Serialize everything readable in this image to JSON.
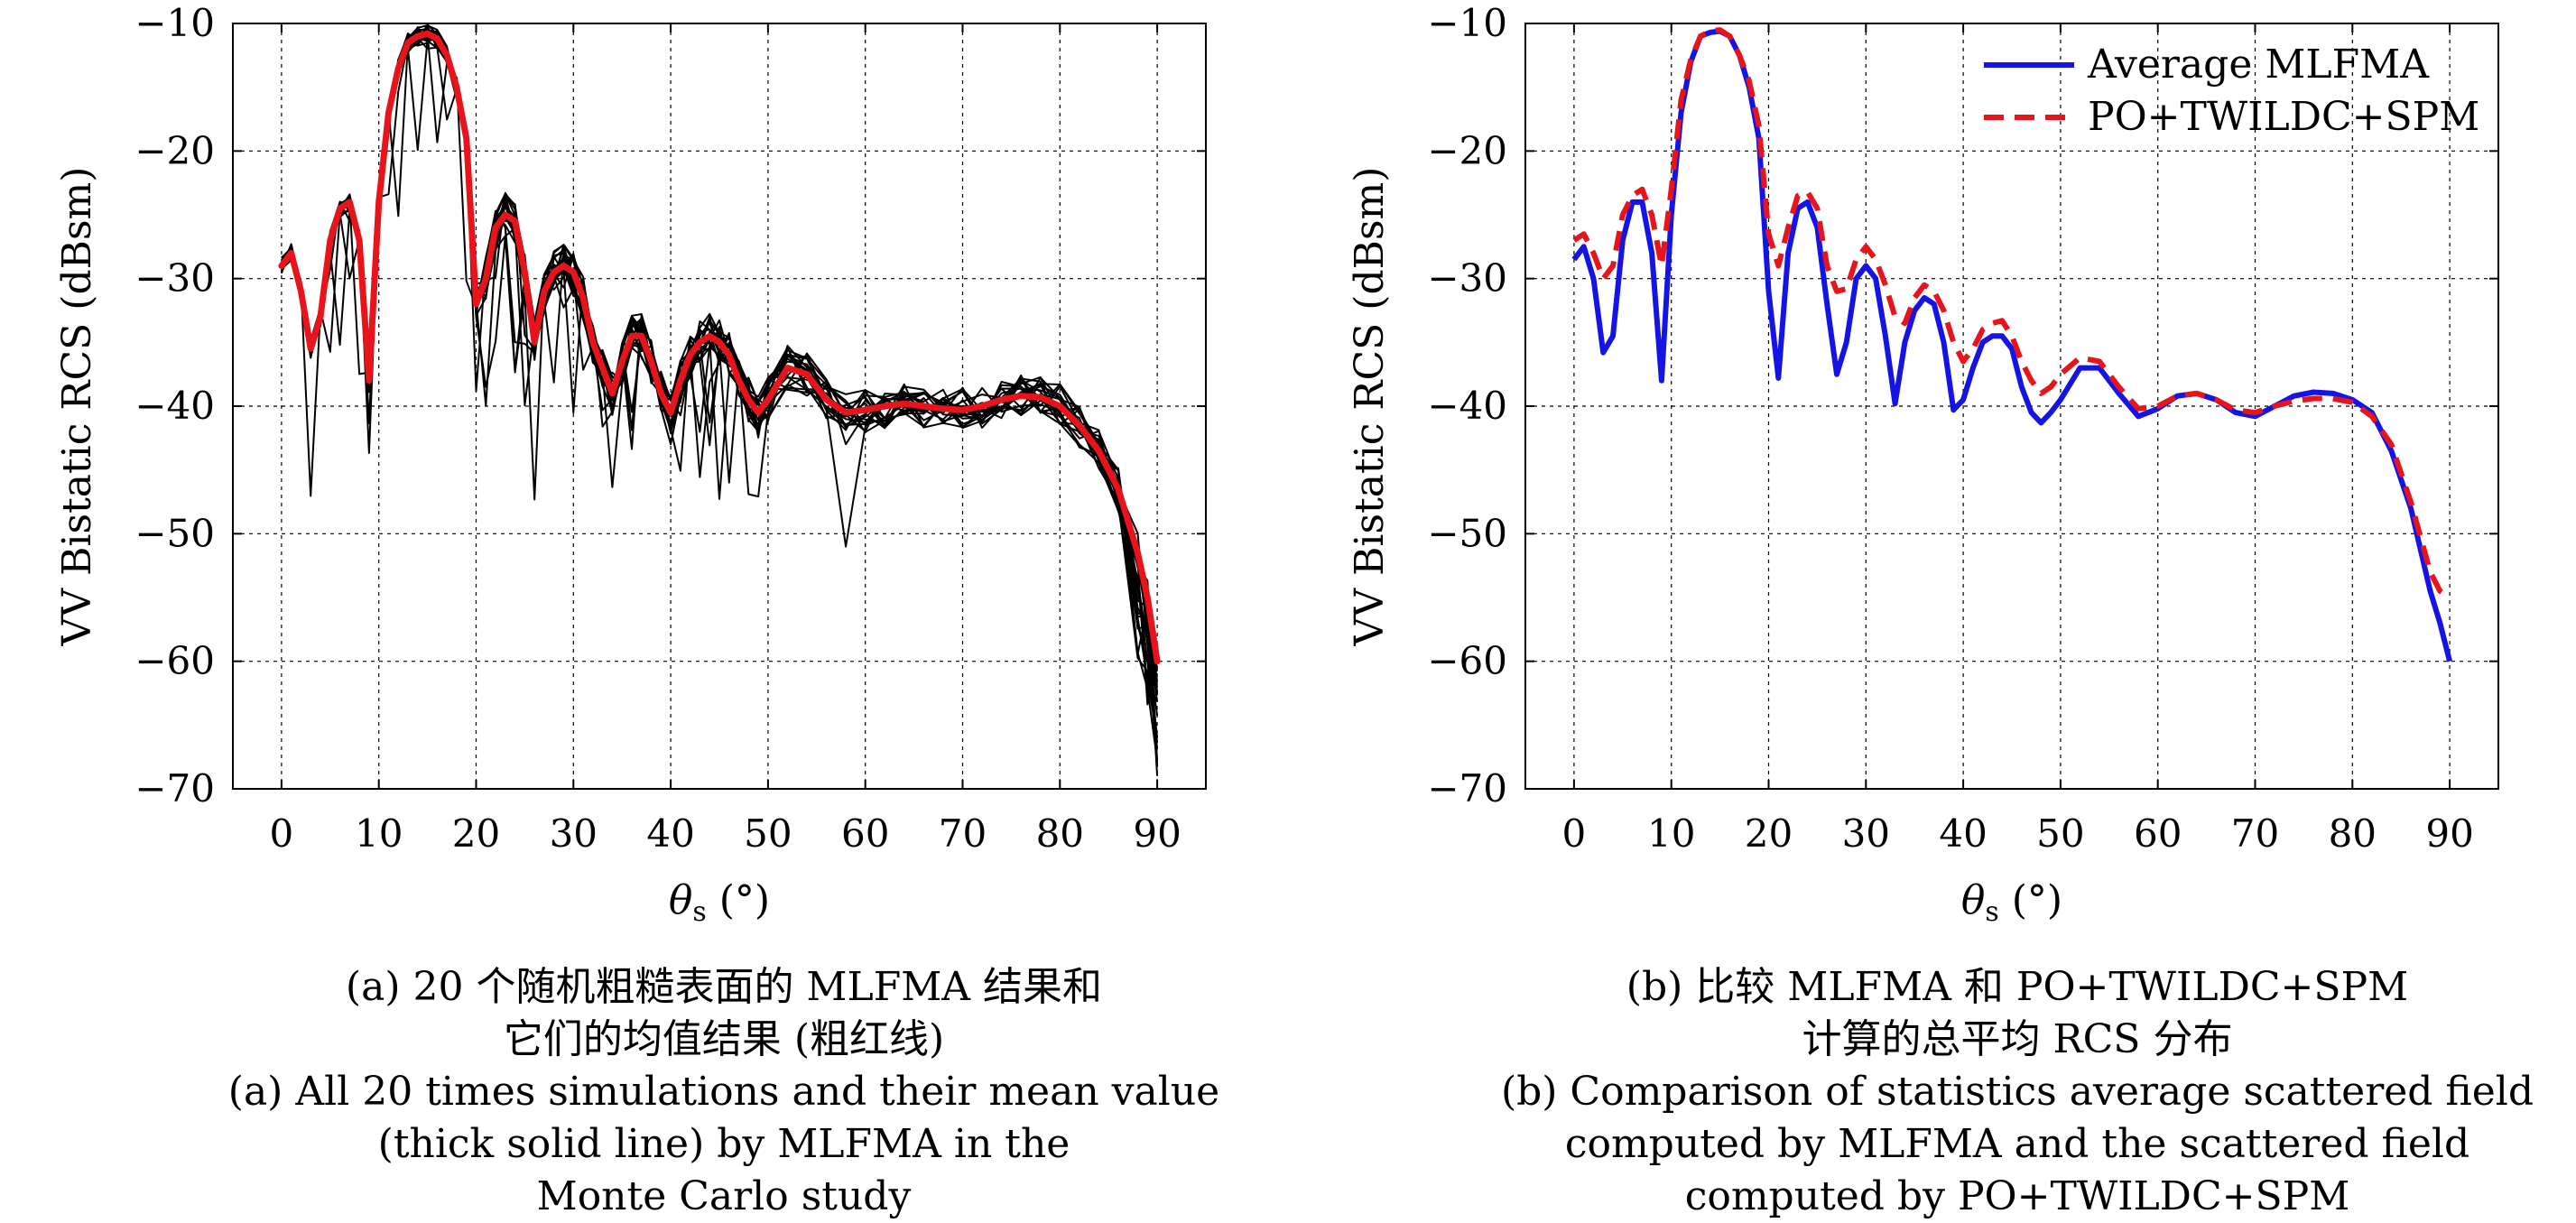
{
  "chart_data": [
    {
      "type": "line",
      "panel": "a",
      "xlabel_symbol": "θ",
      "xlabel_sub": "s",
      "xlabel_unit": "(°)",
      "ylabel": "VV Bistatic RCS (dBsm)",
      "xlim": [
        -5,
        95
      ],
      "ylim": [
        -70,
        -10
      ],
      "xticks": [
        0,
        10,
        20,
        30,
        40,
        50,
        60,
        70,
        80,
        90
      ],
      "yticks": [
        -10,
        -20,
        -30,
        -40,
        -50,
        -60,
        -70
      ],
      "tick_labels_y": [
        "−10",
        "−20",
        "−30",
        "−40",
        "−50",
        "−60",
        "−70"
      ],
      "grid": true,
      "mean_series": {
        "color": "#e8141c",
        "x": [
          0,
          1,
          2,
          3,
          4,
          5,
          6,
          7,
          8,
          9,
          10,
          11,
          12,
          13,
          14,
          15,
          16,
          17,
          18,
          19,
          20,
          21,
          22,
          23,
          24,
          25,
          26,
          27,
          28,
          29,
          30,
          31,
          32,
          33,
          34,
          35,
          36,
          37,
          38,
          39,
          40,
          41,
          42,
          43,
          44,
          45,
          46,
          47,
          48,
          49,
          50,
          52,
          54,
          56,
          58,
          60,
          62,
          64,
          66,
          68,
          70,
          72,
          74,
          76,
          78,
          80,
          82,
          84,
          86,
          88,
          89,
          90
        ],
        "y": [
          -29,
          -28,
          -31,
          -35.5,
          -33,
          -27,
          -24.5,
          -24,
          -27,
          -38,
          -24,
          -17,
          -13.5,
          -11.5,
          -11,
          -10.8,
          -11.2,
          -12.5,
          -15,
          -19,
          -32,
          -30,
          -26,
          -25,
          -25.5,
          -29.5,
          -35,
          -31,
          -29.5,
          -29,
          -29.5,
          -31.5,
          -35,
          -37,
          -39,
          -36.5,
          -34.5,
          -34.5,
          -36.5,
          -39,
          -40.5,
          -38,
          -36,
          -35,
          -34.5,
          -35,
          -36,
          -38,
          -39.5,
          -40.5,
          -39.5,
          -37,
          -37.5,
          -39.5,
          -40.5,
          -40.3,
          -40,
          -39.8,
          -40,
          -40.2,
          -40.3,
          -40,
          -39.5,
          -39.2,
          -39.3,
          -40,
          -41.5,
          -43.5,
          -46.5,
          -51.5,
          -55,
          -60
        ]
      },
      "sample_series_count": 20,
      "sample_color": "#000000"
    },
    {
      "type": "line",
      "panel": "b",
      "xlabel_symbol": "θ",
      "xlabel_sub": "s",
      "xlabel_unit": "(°)",
      "ylabel": "VV Bistatic RCS (dBsm)",
      "xlim": [
        -5,
        95
      ],
      "ylim": [
        -70,
        -10
      ],
      "xticks": [
        0,
        10,
        20,
        30,
        40,
        50,
        60,
        70,
        80,
        90
      ],
      "yticks": [
        -10,
        -20,
        -30,
        -40,
        -50,
        -60,
        -70
      ],
      "tick_labels_y": [
        "−10",
        "−20",
        "−30",
        "−40",
        "−50",
        "−60",
        "−70"
      ],
      "grid": true,
      "legend_position": "top-right",
      "series": [
        {
          "name": "Average MLFMA",
          "color": "#1414e6",
          "dash": "solid",
          "x": [
            0,
            1,
            2,
            3,
            4,
            5,
            6,
            7,
            8,
            9,
            10,
            11,
            12,
            13,
            14,
            15,
            16,
            17,
            18,
            19,
            20,
            21,
            22,
            23,
            24,
            25,
            26,
            27,
            28,
            29,
            30,
            31,
            32,
            33,
            34,
            35,
            36,
            37,
            38,
            39,
            40,
            41,
            42,
            43,
            44,
            45,
            46,
            47,
            48,
            49,
            50,
            52,
            54,
            56,
            58,
            60,
            62,
            64,
            66,
            68,
            70,
            72,
            74,
            76,
            78,
            80,
            82,
            84,
            86,
            88,
            89,
            90
          ],
          "y": [
            -28.5,
            -27.5,
            -30,
            -35.8,
            -34.5,
            -27,
            -24,
            -24,
            -28,
            -38,
            -25,
            -17,
            -13,
            -11,
            -10.7,
            -10.6,
            -11,
            -12.5,
            -15,
            -19,
            -31,
            -37.8,
            -28,
            -24.5,
            -24,
            -26,
            -32,
            -37.5,
            -35,
            -30,
            -29,
            -30,
            -34.5,
            -39.8,
            -35,
            -32.5,
            -31.5,
            -32,
            -35,
            -40.3,
            -39.5,
            -37,
            -35,
            -34.5,
            -34.5,
            -35.5,
            -38.5,
            -40.5,
            -41.3,
            -40.5,
            -39.5,
            -37,
            -37,
            -39,
            -40.8,
            -40.2,
            -39.2,
            -39,
            -39.5,
            -40.5,
            -40.8,
            -40,
            -39.2,
            -38.9,
            -39,
            -39.5,
            -40.5,
            -43.5,
            -48,
            -54.5,
            -57,
            -60
          ]
        },
        {
          "name": "PO+TWILDC+SPM",
          "color": "#e8141c",
          "dash": "dashed",
          "x": [
            0,
            1,
            2,
            3,
            4,
            5,
            6,
            7,
            8,
            9,
            10,
            11,
            12,
            13,
            14,
            15,
            16,
            17,
            18,
            19,
            20,
            21,
            22,
            23,
            24,
            25,
            26,
            27,
            28,
            29,
            30,
            31,
            32,
            33,
            34,
            35,
            36,
            37,
            38,
            39,
            40,
            41,
            42,
            43,
            44,
            45,
            46,
            47,
            48,
            49,
            50,
            52,
            54,
            56,
            58,
            60,
            62,
            64,
            66,
            68,
            70,
            72,
            74,
            76,
            78,
            80,
            82,
            84,
            86,
            88,
            89,
            90
          ],
          "y": [
            -27,
            -26.5,
            -28,
            -30,
            -29,
            -25,
            -23.5,
            -23,
            -25,
            -29,
            -23,
            -16,
            -12.8,
            -11,
            -10.6,
            -10.5,
            -11,
            -12.5,
            -14.5,
            -18,
            -26.5,
            -29,
            -26,
            -23.5,
            -23.2,
            -24.5,
            -29,
            -31,
            -30.8,
            -28.5,
            -27.5,
            -28.5,
            -30.5,
            -33,
            -33.5,
            -31.5,
            -30.5,
            -31,
            -32.5,
            -35,
            -36.5,
            -35.5,
            -34,
            -33.5,
            -33.3,
            -34.5,
            -36.5,
            -38,
            -39,
            -38.5,
            -37.5,
            -36.2,
            -36.5,
            -38.5,
            -40.2,
            -40,
            -39.2,
            -39,
            -39.5,
            -40.3,
            -40.5,
            -40,
            -39.6,
            -39.4,
            -39.4,
            -39.7,
            -40.8,
            -43,
            -47.5,
            -53,
            -54.5,
            -55
          ]
        }
      ]
    }
  ],
  "captions": {
    "a": {
      "zh_line1": "(a) 20 个随机粗糙表面的 MLFMA 结果和",
      "zh_line2": "它们的均值结果 (粗红线)",
      "en_line1": "(a) All 20 times simulations and their mean value",
      "en_line2": "(thick solid line) by MLFMA in the",
      "en_line3": "Monte Carlo study"
    },
    "b": {
      "zh_line1": "(b) 比较 MLFMA 和 PO+TWILDC+SPM",
      "zh_line2": "计算的总平均 RCS 分布",
      "en_line1": "(b) Comparison of statistics average scattered field",
      "en_line2": "computed by MLFMA and the scattered field",
      "en_line3": "computed by PO+TWILDC+SPM"
    }
  }
}
